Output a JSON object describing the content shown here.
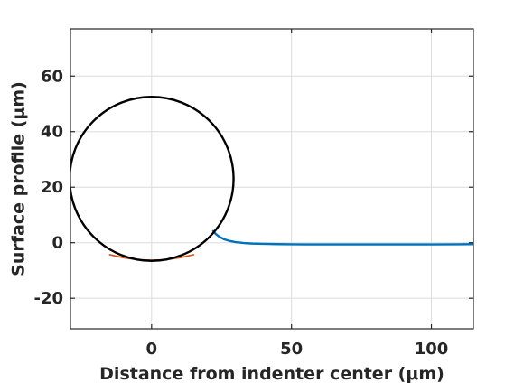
{
  "chart_data": {
    "type": "line",
    "xlabel": "Distance from indenter center (μm)",
    "ylabel": "Surface profile (μm)",
    "xlim": [
      -29,
      115
    ],
    "ylim": [
      -31,
      77
    ],
    "xticks": [
      0,
      50,
      100
    ],
    "yticks": [
      -20,
      0,
      20,
      40,
      60
    ],
    "xtick_labels": [
      "0",
      "50",
      "100"
    ],
    "ytick_labels": [
      "-20",
      "0",
      "20",
      "40",
      "60"
    ],
    "grid": true,
    "series": [
      {
        "color": "#0072BD",
        "x": [
          22,
          23,
          24,
          25,
          26,
          28,
          30,
          33,
          36,
          40,
          45,
          50,
          55,
          60,
          70,
          80,
          90,
          100,
          110,
          115
        ],
        "y": [
          4.2,
          3.1,
          2.3,
          1.7,
          1.2,
          0.6,
          0.2,
          -0.1,
          -0.3,
          -0.4,
          -0.5,
          -0.55,
          -0.6,
          -0.6,
          -0.6,
          -0.6,
          -0.6,
          -0.6,
          -0.55,
          -0.5
        ]
      },
      {
        "color": "#D95319",
        "x": [
          -15,
          -10,
          -5,
          0,
          5,
          10,
          15
        ],
        "y": [
          -4.3,
          -5.4,
          -6.1,
          -6.3,
          -6.1,
          -5.4,
          -4.3
        ]
      }
    ],
    "indenter_circle": {
      "center_x": 0,
      "center_y": 23,
      "radius": 29.3,
      "color": "#000000"
    },
    "colors": {
      "grid": "#dcdcdc",
      "axes": "#262626"
    }
  }
}
